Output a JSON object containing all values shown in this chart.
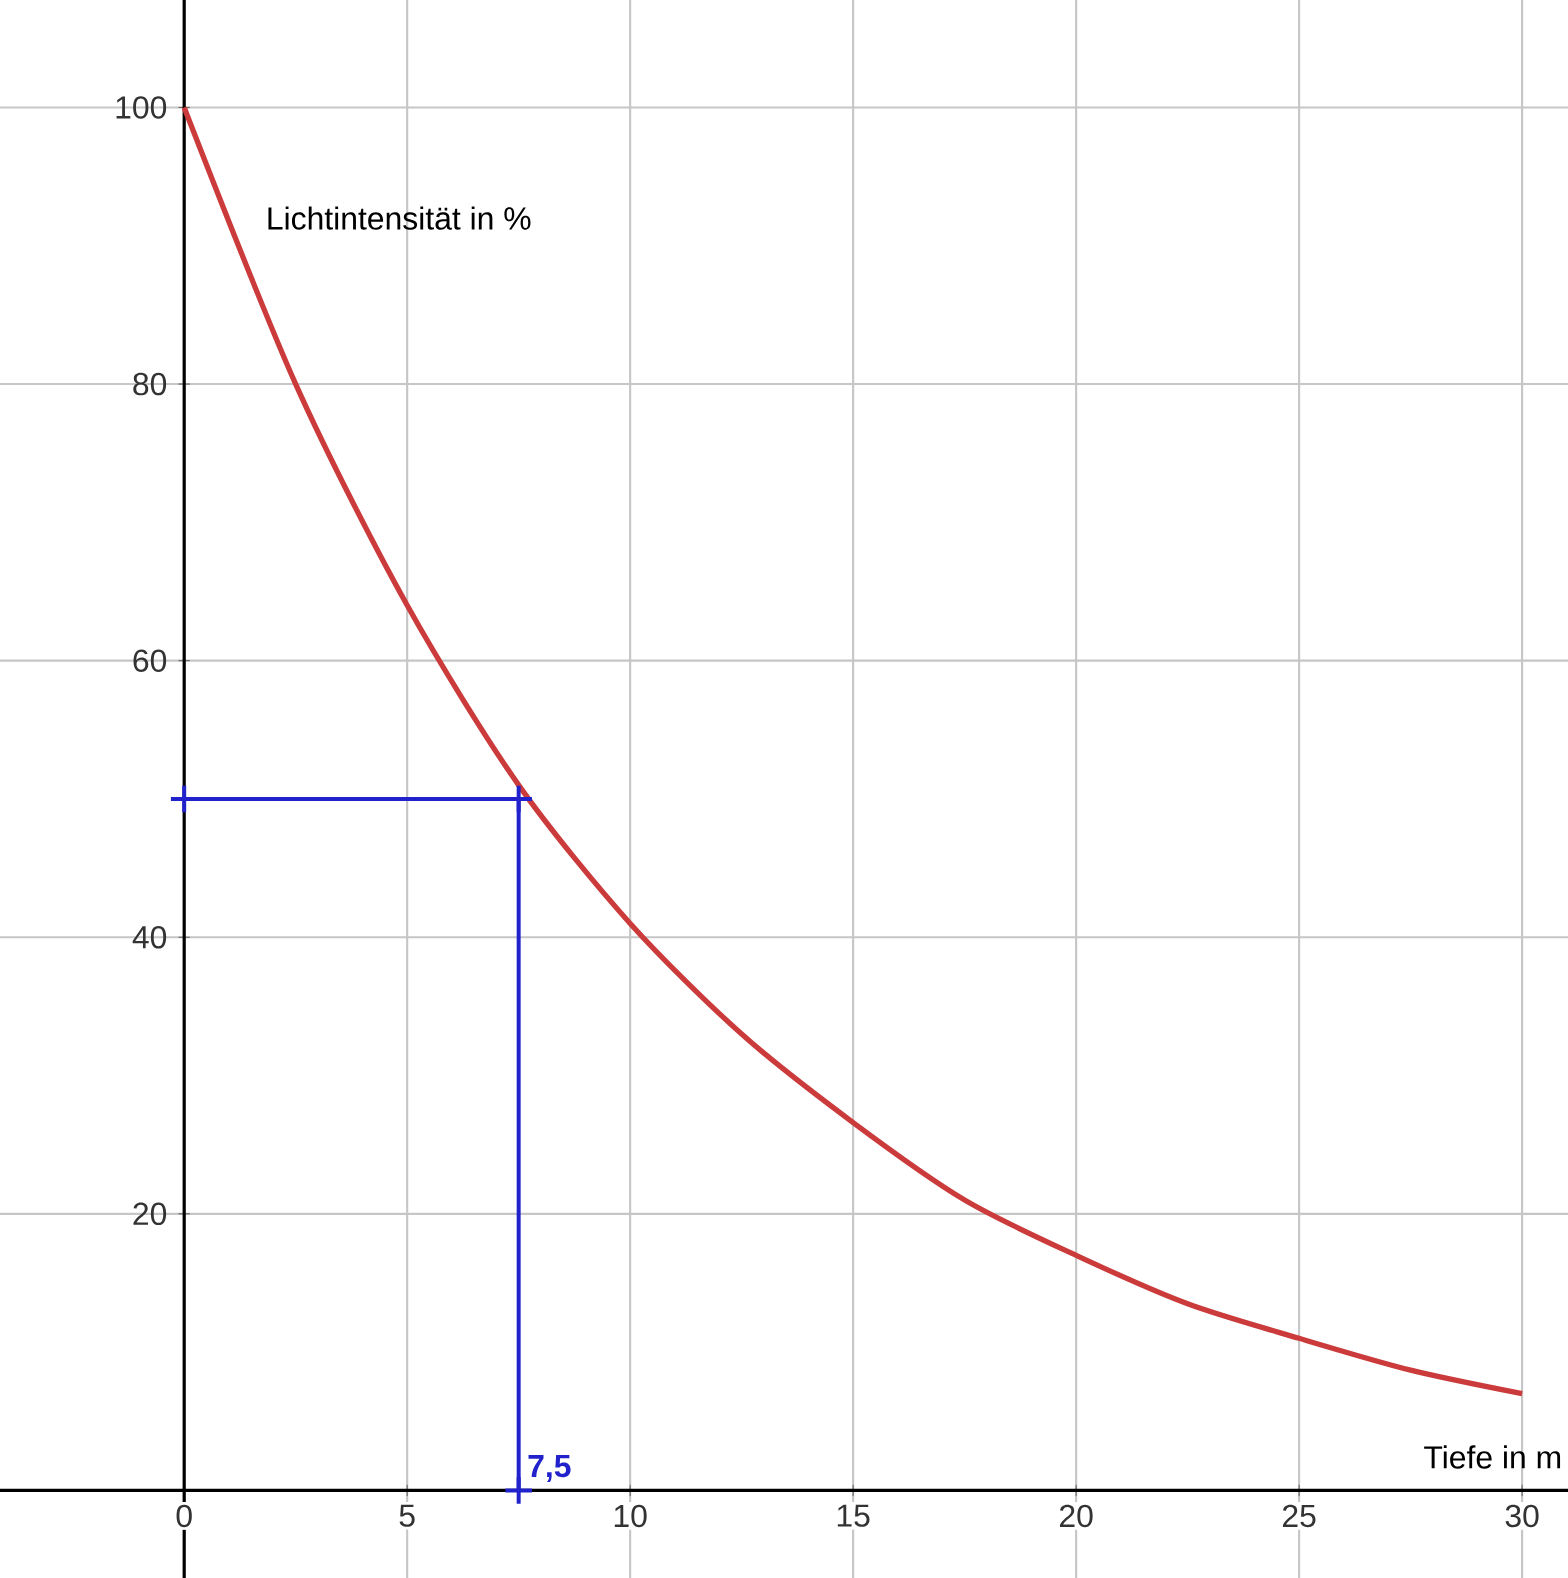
{
  "chart_data": {
    "type": "line",
    "xlabel": "Tiefe in m",
    "ylabel": "Lichtintensität in %",
    "xlim": [
      -4.13,
      31.03
    ],
    "ylim": [
      -6.33,
      107.77
    ],
    "xticks": [
      0,
      5,
      10,
      15,
      20,
      25,
      30
    ],
    "yticks": [
      20,
      40,
      60,
      80,
      100
    ],
    "grid": true,
    "series": [
      {
        "x": [
          0,
          2.5,
          5,
          7.5,
          10,
          12.5,
          15,
          17.5,
          20,
          22.5,
          25,
          27.5,
          30
        ],
        "values": [
          100,
          80,
          64,
          51,
          41,
          33,
          26.6,
          21,
          17,
          13.5,
          11,
          8.7,
          7
        ],
        "color": "#cc3b3b",
        "marker": "none"
      },
      {
        "x": [
          0,
          7.5,
          7.5
        ],
        "values": [
          50,
          50,
          0
        ],
        "color": "#2222cc",
        "marker": "cross"
      }
    ],
    "annotations": [
      {
        "text": "7,5",
        "x": 7.5,
        "y": 0
      }
    ]
  }
}
